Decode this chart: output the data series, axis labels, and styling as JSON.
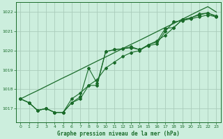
{
  "title": "Graphe pression niveau de la mer (hPa)",
  "bg_color": "#cceedd",
  "grid_color": "#aaccbb",
  "line_color": "#1a6b2a",
  "xlim": [
    -0.5,
    23.5
  ],
  "ylim": [
    1016.3,
    1022.5
  ],
  "yticks": [
    1017,
    1018,
    1019,
    1020,
    1021,
    1022
  ],
  "xticks": [
    0,
    1,
    2,
    3,
    4,
    5,
    6,
    7,
    8,
    9,
    10,
    11,
    12,
    13,
    14,
    15,
    16,
    17,
    18,
    19,
    20,
    21,
    22,
    23
  ],
  "series": [
    [
      1017.5,
      1017.3,
      1016.9,
      1017.0,
      1016.8,
      1016.8,
      1017.5,
      1017.8,
      1018.2,
      1018.5,
      1019.1,
      1019.4,
      1019.7,
      1019.9,
      1020.0,
      1020.3,
      1020.5,
      1020.8,
      1021.2,
      1021.6,
      1021.7,
      1021.9,
      1021.95,
      1021.8
    ],
    [
      1017.5,
      1017.3,
      1016.9,
      1017.0,
      1016.8,
      1016.8,
      1017.3,
      1017.6,
      1019.1,
      1018.3,
      1019.95,
      1020.05,
      1020.1,
      1020.15,
      1020.05,
      1020.25,
      1020.35,
      1021.0,
      1021.5,
      1021.55,
      1021.65,
      1021.75,
      1021.85,
      1021.75
    ],
    [
      1017.5,
      1017.3,
      1016.9,
      1017.0,
      1016.8,
      1016.8,
      1017.3,
      1017.5,
      1018.2,
      1018.2,
      1019.95,
      1020.05,
      1020.1,
      1020.2,
      1020.05,
      1020.3,
      1020.45,
      1021.15,
      1021.2,
      1021.6,
      1021.7,
      1021.85,
      1021.95,
      1021.75
    ]
  ],
  "straight_line": [
    1017.5,
    1017.72,
    1017.93,
    1018.15,
    1018.37,
    1018.59,
    1018.8,
    1019.02,
    1019.24,
    1019.46,
    1019.67,
    1019.89,
    1020.11,
    1020.33,
    1020.54,
    1020.76,
    1020.98,
    1021.2,
    1021.41,
    1021.63,
    1021.85,
    1022.07,
    1022.28,
    1022.0
  ]
}
